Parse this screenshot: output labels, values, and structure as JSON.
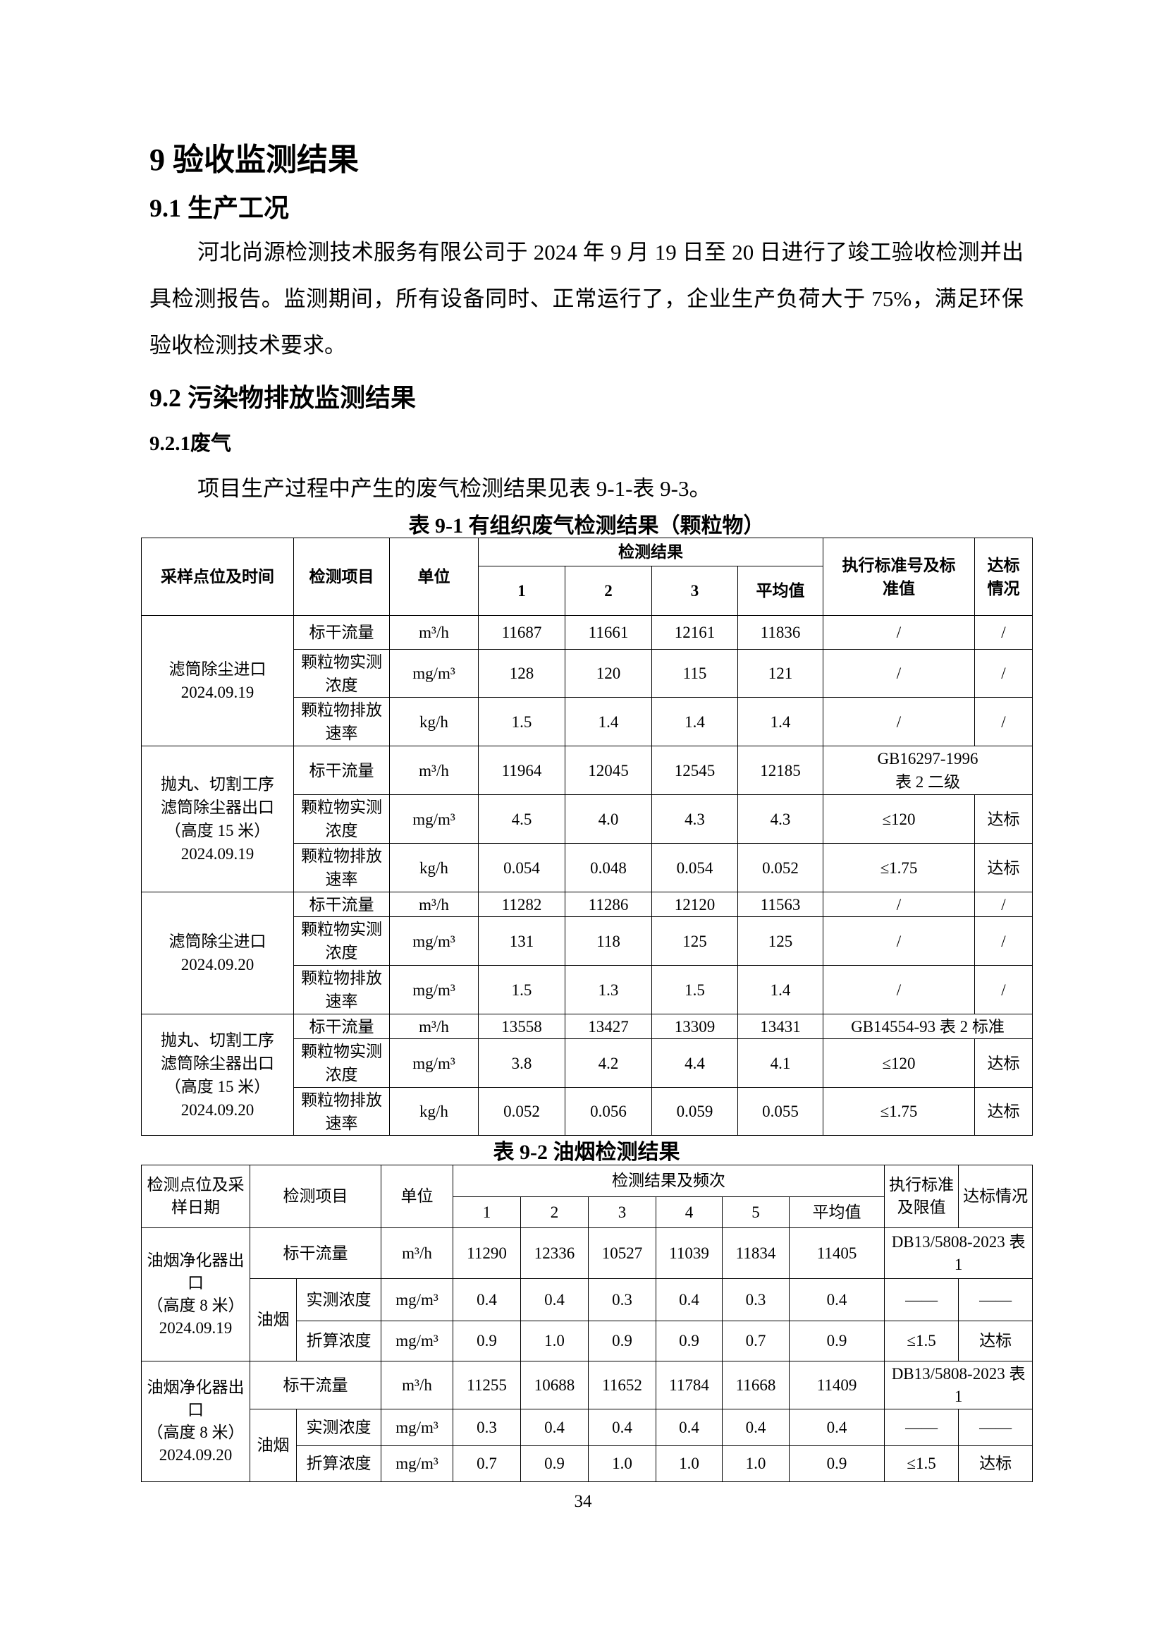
{
  "headings": {
    "h1": "9 验收监测结果",
    "h2_1": "9.1 生产工况",
    "h2_2": "9.2 污染物排放监测结果",
    "h3_1": "9.2.1废气"
  },
  "paragraphs": {
    "p1": "河北尚源检测技术服务有限公司于 2024 年 9 月 19 日至 20 日进行了竣工验收检测并出具检测报告。监测期间，所有设备同时、正常运行了，企业生产负荷大于 75%，满足环保验收检测技术要求。",
    "p2": "项目生产过程中产生的废气检测结果见表 9-1-表 9-3。"
  },
  "table1": {
    "caption": "表 9-1  有组织废气检测结果（颗粒物）",
    "headers": {
      "location": "采样点位及时间",
      "item": "检测项目",
      "unit": "单位",
      "results": "检测结果",
      "cols": [
        "1",
        "2",
        "3",
        "平均值"
      ],
      "standard": "执行标准号及标\n准值",
      "status": "达标\n情况"
    },
    "groups": [
      {
        "location": "滤筒除尘进口\n2024.09.19",
        "rows": [
          {
            "item": "标干流量",
            "unit": "m³/h",
            "values": [
              "11687",
              "11661",
              "12161",
              "11836"
            ],
            "standard": "/",
            "status": "/"
          },
          {
            "item": "颗粒物实测浓度",
            "unit": "mg/m³",
            "values": [
              "128",
              "120",
              "115",
              "121"
            ],
            "standard": "/",
            "status": "/"
          },
          {
            "item": "颗粒物排放速率",
            "unit": "kg/h",
            "values": [
              "1.5",
              "1.4",
              "1.4",
              "1.4"
            ],
            "standard": "/",
            "status": "/"
          }
        ]
      },
      {
        "location": "抛丸、切割工序\n滤筒除尘器出口\n（高度 15 米）\n2024.09.19",
        "rows": [
          {
            "item": "标干流量",
            "unit": "m³/h",
            "values": [
              "11964",
              "12045",
              "12545",
              "12185"
            ],
            "standard": "GB16297-1996\n表 2 二级"
          },
          {
            "item": "颗粒物实测浓度",
            "unit": "mg/m³",
            "values": [
              "4.5",
              "4.0",
              "4.3",
              "4.3"
            ],
            "standard": "≤120",
            "status": "达标"
          },
          {
            "item": "颗粒物排放速率",
            "unit": "kg/h",
            "values": [
              "0.054",
              "0.048",
              "0.054",
              "0.052"
            ],
            "standard": "≤1.75",
            "status": "达标"
          }
        ]
      },
      {
        "location": "滤筒除尘进口\n2024.09.20",
        "rows": [
          {
            "item": "标干流量",
            "unit": "m³/h",
            "values": [
              "11282",
              "11286",
              "12120",
              "11563"
            ],
            "standard": "/",
            "status": "/"
          },
          {
            "item": "颗粒物实测浓度",
            "unit": "mg/m³",
            "values": [
              "131",
              "118",
              "125",
              "125"
            ],
            "standard": "/",
            "status": "/"
          },
          {
            "item": "颗粒物排放速率",
            "unit": "mg/m³",
            "values": [
              "1.5",
              "1.3",
              "1.5",
              "1.4"
            ],
            "standard": "/",
            "status": "/"
          }
        ]
      },
      {
        "location": "抛丸、切割工序\n滤筒除尘器出口\n（高度 15 米）\n2024.09.20",
        "rows": [
          {
            "item": "标干流量",
            "unit": "m³/h",
            "values": [
              "13558",
              "13427",
              "13309",
              "13431"
            ],
            "standard": "GB14554-93 表 2 标准"
          },
          {
            "item": "颗粒物实测浓度",
            "unit": "mg/m³",
            "values": [
              "3.8",
              "4.2",
              "4.4",
              "4.1"
            ],
            "standard": "≤120",
            "status": "达标"
          },
          {
            "item": "颗粒物排放速率",
            "unit": "kg/h",
            "values": [
              "0.052",
              "0.056",
              "0.059",
              "0.055"
            ],
            "standard": "≤1.75",
            "status": "达标"
          }
        ]
      }
    ]
  },
  "table2": {
    "caption": "表 9-2  油烟检测结果",
    "headers": {
      "location": "检测点位及采\n样日期",
      "item": "检测项目",
      "unit": "单位",
      "results": "检测结果及频次",
      "cols": [
        "1",
        "2",
        "3",
        "4",
        "5",
        "平均值"
      ],
      "standard": "执行标准\n及限值",
      "status": "达标情况"
    },
    "groups": [
      {
        "location": "油烟净化器出\n口\n（高度 8 米）\n2024.09.19",
        "flow": {
          "item": "标干流量",
          "unit": "m³/h",
          "values": [
            "11290",
            "12336",
            "10527",
            "11039",
            "11834",
            "11405"
          ],
          "standard": "DB13/5808-2023 表\n1"
        },
        "sub_label": "油烟",
        "rows": [
          {
            "item": "实测浓度",
            "unit": "mg/m³",
            "values": [
              "0.4",
              "0.4",
              "0.3",
              "0.4",
              "0.3",
              "0.4"
            ],
            "standard": "——",
            "status": "——"
          },
          {
            "item": "折算浓度",
            "unit": "mg/m³",
            "values": [
              "0.9",
              "1.0",
              "0.9",
              "0.9",
              "0.7",
              "0.9"
            ],
            "standard": "≤1.5",
            "status": "达标"
          }
        ]
      },
      {
        "location": "油烟净化器出\n口\n（高度 8 米）\n2024.09.20",
        "flow": {
          "item": "标干流量",
          "unit": "m³/h",
          "values": [
            "11255",
            "10688",
            "11652",
            "11784",
            "11668",
            "11409"
          ],
          "standard": "DB13/5808-2023 表\n1"
        },
        "sub_label": "油烟",
        "rows": [
          {
            "item": "实测浓度",
            "unit": "mg/m³",
            "values": [
              "0.3",
              "0.4",
              "0.4",
              "0.4",
              "0.4",
              "0.4"
            ],
            "standard": "——",
            "status": "——"
          },
          {
            "item": "折算浓度",
            "unit": "mg/m³",
            "values": [
              "0.7",
              "0.9",
              "1.0",
              "1.0",
              "1.0",
              "0.9"
            ],
            "standard": "≤1.5",
            "status": "达标"
          }
        ]
      }
    ]
  },
  "page_number": "34"
}
